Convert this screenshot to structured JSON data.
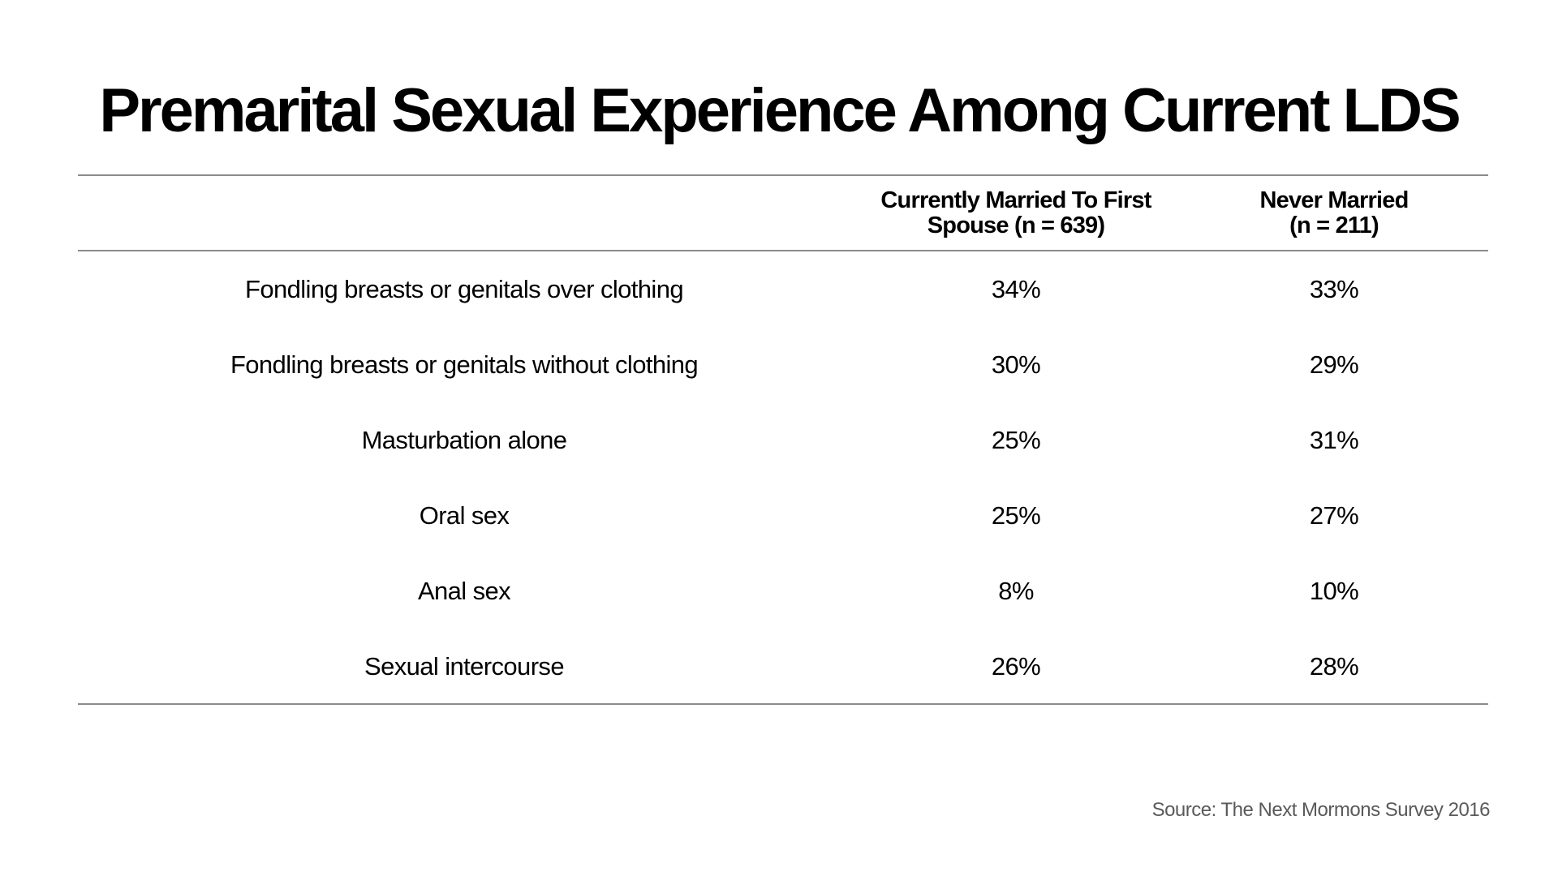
{
  "title": "Premarital Sexual Experience Among Current LDS",
  "source": "Source: The Next Mormons Survey 2016",
  "colors": {
    "text": "#000000",
    "rule": "#8c8c8c",
    "source_text": "#5a5a5a",
    "background": "#ffffff"
  },
  "chart_data": {
    "type": "table",
    "title": "Premarital Sexual Experience Among Current LDS",
    "columns": [
      {
        "header_lines": [
          "Currently Married To First",
          "Spouse (n = 639)"
        ]
      },
      {
        "header_lines": [
          "Never Married",
          "(n = 211)"
        ]
      }
    ],
    "rows": [
      {
        "label": "Fondling breasts or genitals over clothing",
        "values": [
          "34%",
          "33%"
        ]
      },
      {
        "label": "Fondling breasts or genitals without clothing",
        "values": [
          "30%",
          "29%"
        ]
      },
      {
        "label": "Masturbation alone",
        "values": [
          "25%",
          "31%"
        ]
      },
      {
        "label": "Oral sex",
        "values": [
          "25%",
          "27%"
        ]
      },
      {
        "label": "Anal sex",
        "values": [
          "8%",
          "10%"
        ]
      },
      {
        "label": "Sexual intercourse",
        "values": [
          "26%",
          "28%"
        ]
      }
    ]
  }
}
